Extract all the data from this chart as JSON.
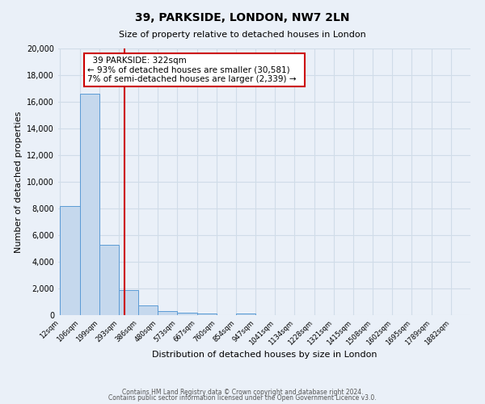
{
  "title": "39, PARKSIDE, LONDON, NW7 2LN",
  "subtitle": "Size of property relative to detached houses in London",
  "xlabel": "Distribution of detached houses by size in London",
  "ylabel": "Number of detached properties",
  "bin_labels": [
    "12sqm",
    "106sqm",
    "199sqm",
    "293sqm",
    "386sqm",
    "480sqm",
    "573sqm",
    "667sqm",
    "760sqm",
    "854sqm",
    "947sqm",
    "1041sqm",
    "1134sqm",
    "1228sqm",
    "1321sqm",
    "1415sqm",
    "1508sqm",
    "1602sqm",
    "1695sqm",
    "1789sqm",
    "1882sqm"
  ],
  "bar_values": [
    8200,
    16600,
    5300,
    1850,
    750,
    280,
    170,
    100,
    0,
    100,
    0,
    0,
    0,
    0,
    0,
    0,
    0,
    0,
    0,
    0,
    0
  ],
  "bar_color": "#c5d8ed",
  "bar_edge_color": "#5b9bd5",
  "vline_color": "#cc0000",
  "annotation_title": "39 PARKSIDE: 322sqm",
  "annotation_line1": "← 93% of detached houses are smaller (30,581)",
  "annotation_line2": "7% of semi-detached houses are larger (2,339) →",
  "annotation_box_color": "#ffffff",
  "annotation_box_edge": "#cc0000",
  "ylim": [
    0,
    20000
  ],
  "yticks": [
    0,
    2000,
    4000,
    6000,
    8000,
    10000,
    12000,
    14000,
    16000,
    18000,
    20000
  ],
  "footer1": "Contains HM Land Registry data © Crown copyright and database right 2024.",
  "footer2": "Contains public sector information licensed under the Open Government Licence v3.0.",
  "bg_color": "#eaf0f8",
  "plot_bg_color": "#eaf0f8",
  "grid_color": "#d0dce8"
}
